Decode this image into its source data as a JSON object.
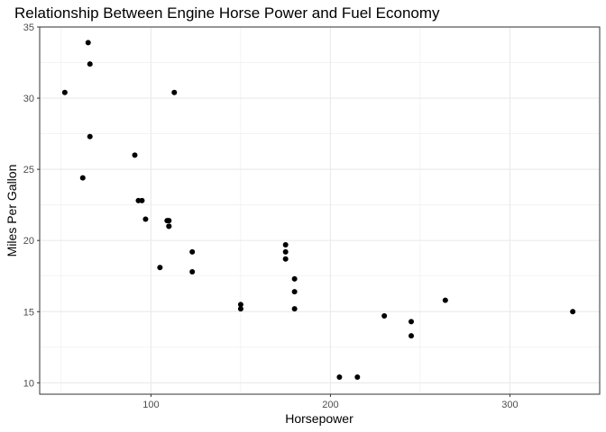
{
  "chart_data": {
    "type": "scatter",
    "title": "Relationship Between Engine Horse Power and Fuel Economy",
    "xlabel": "Horsepower",
    "ylabel": "Miles Per Gallon",
    "xlim": [
      38,
      350
    ],
    "ylim": [
      9.2,
      35.0
    ],
    "x_ticks": [
      100,
      200,
      300
    ],
    "y_ticks": [
      10,
      15,
      20,
      25,
      30,
      35
    ],
    "grid": true,
    "legend": "none",
    "colors": {
      "point": "#000000",
      "grid": "#ebebeb",
      "panel_border": "#333333",
      "background": "#ffffff"
    },
    "points": [
      {
        "x": 110,
        "y": 21.0
      },
      {
        "x": 110,
        "y": 21.0
      },
      {
        "x": 93,
        "y": 22.8
      },
      {
        "x": 110,
        "y": 21.4
      },
      {
        "x": 175,
        "y": 18.7
      },
      {
        "x": 105,
        "y": 18.1
      },
      {
        "x": 245,
        "y": 14.3
      },
      {
        "x": 62,
        "y": 24.4
      },
      {
        "x": 95,
        "y": 22.8
      },
      {
        "x": 123,
        "y": 19.2
      },
      {
        "x": 123,
        "y": 17.8
      },
      {
        "x": 180,
        "y": 16.4
      },
      {
        "x": 180,
        "y": 17.3
      },
      {
        "x": 180,
        "y": 15.2
      },
      {
        "x": 205,
        "y": 10.4
      },
      {
        "x": 215,
        "y": 10.4
      },
      {
        "x": 230,
        "y": 14.7
      },
      {
        "x": 66,
        "y": 32.4
      },
      {
        "x": 52,
        "y": 30.4
      },
      {
        "x": 65,
        "y": 33.9
      },
      {
        "x": 97,
        "y": 21.5
      },
      {
        "x": 150,
        "y": 15.5
      },
      {
        "x": 150,
        "y": 15.2
      },
      {
        "x": 245,
        "y": 13.3
      },
      {
        "x": 175,
        "y": 19.2
      },
      {
        "x": 66,
        "y": 27.3
      },
      {
        "x": 91,
        "y": 26.0
      },
      {
        "x": 113,
        "y": 30.4
      },
      {
        "x": 264,
        "y": 15.8
      },
      {
        "x": 175,
        "y": 19.7
      },
      {
        "x": 335,
        "y": 15.0
      },
      {
        "x": 109,
        "y": 21.4
      }
    ]
  }
}
